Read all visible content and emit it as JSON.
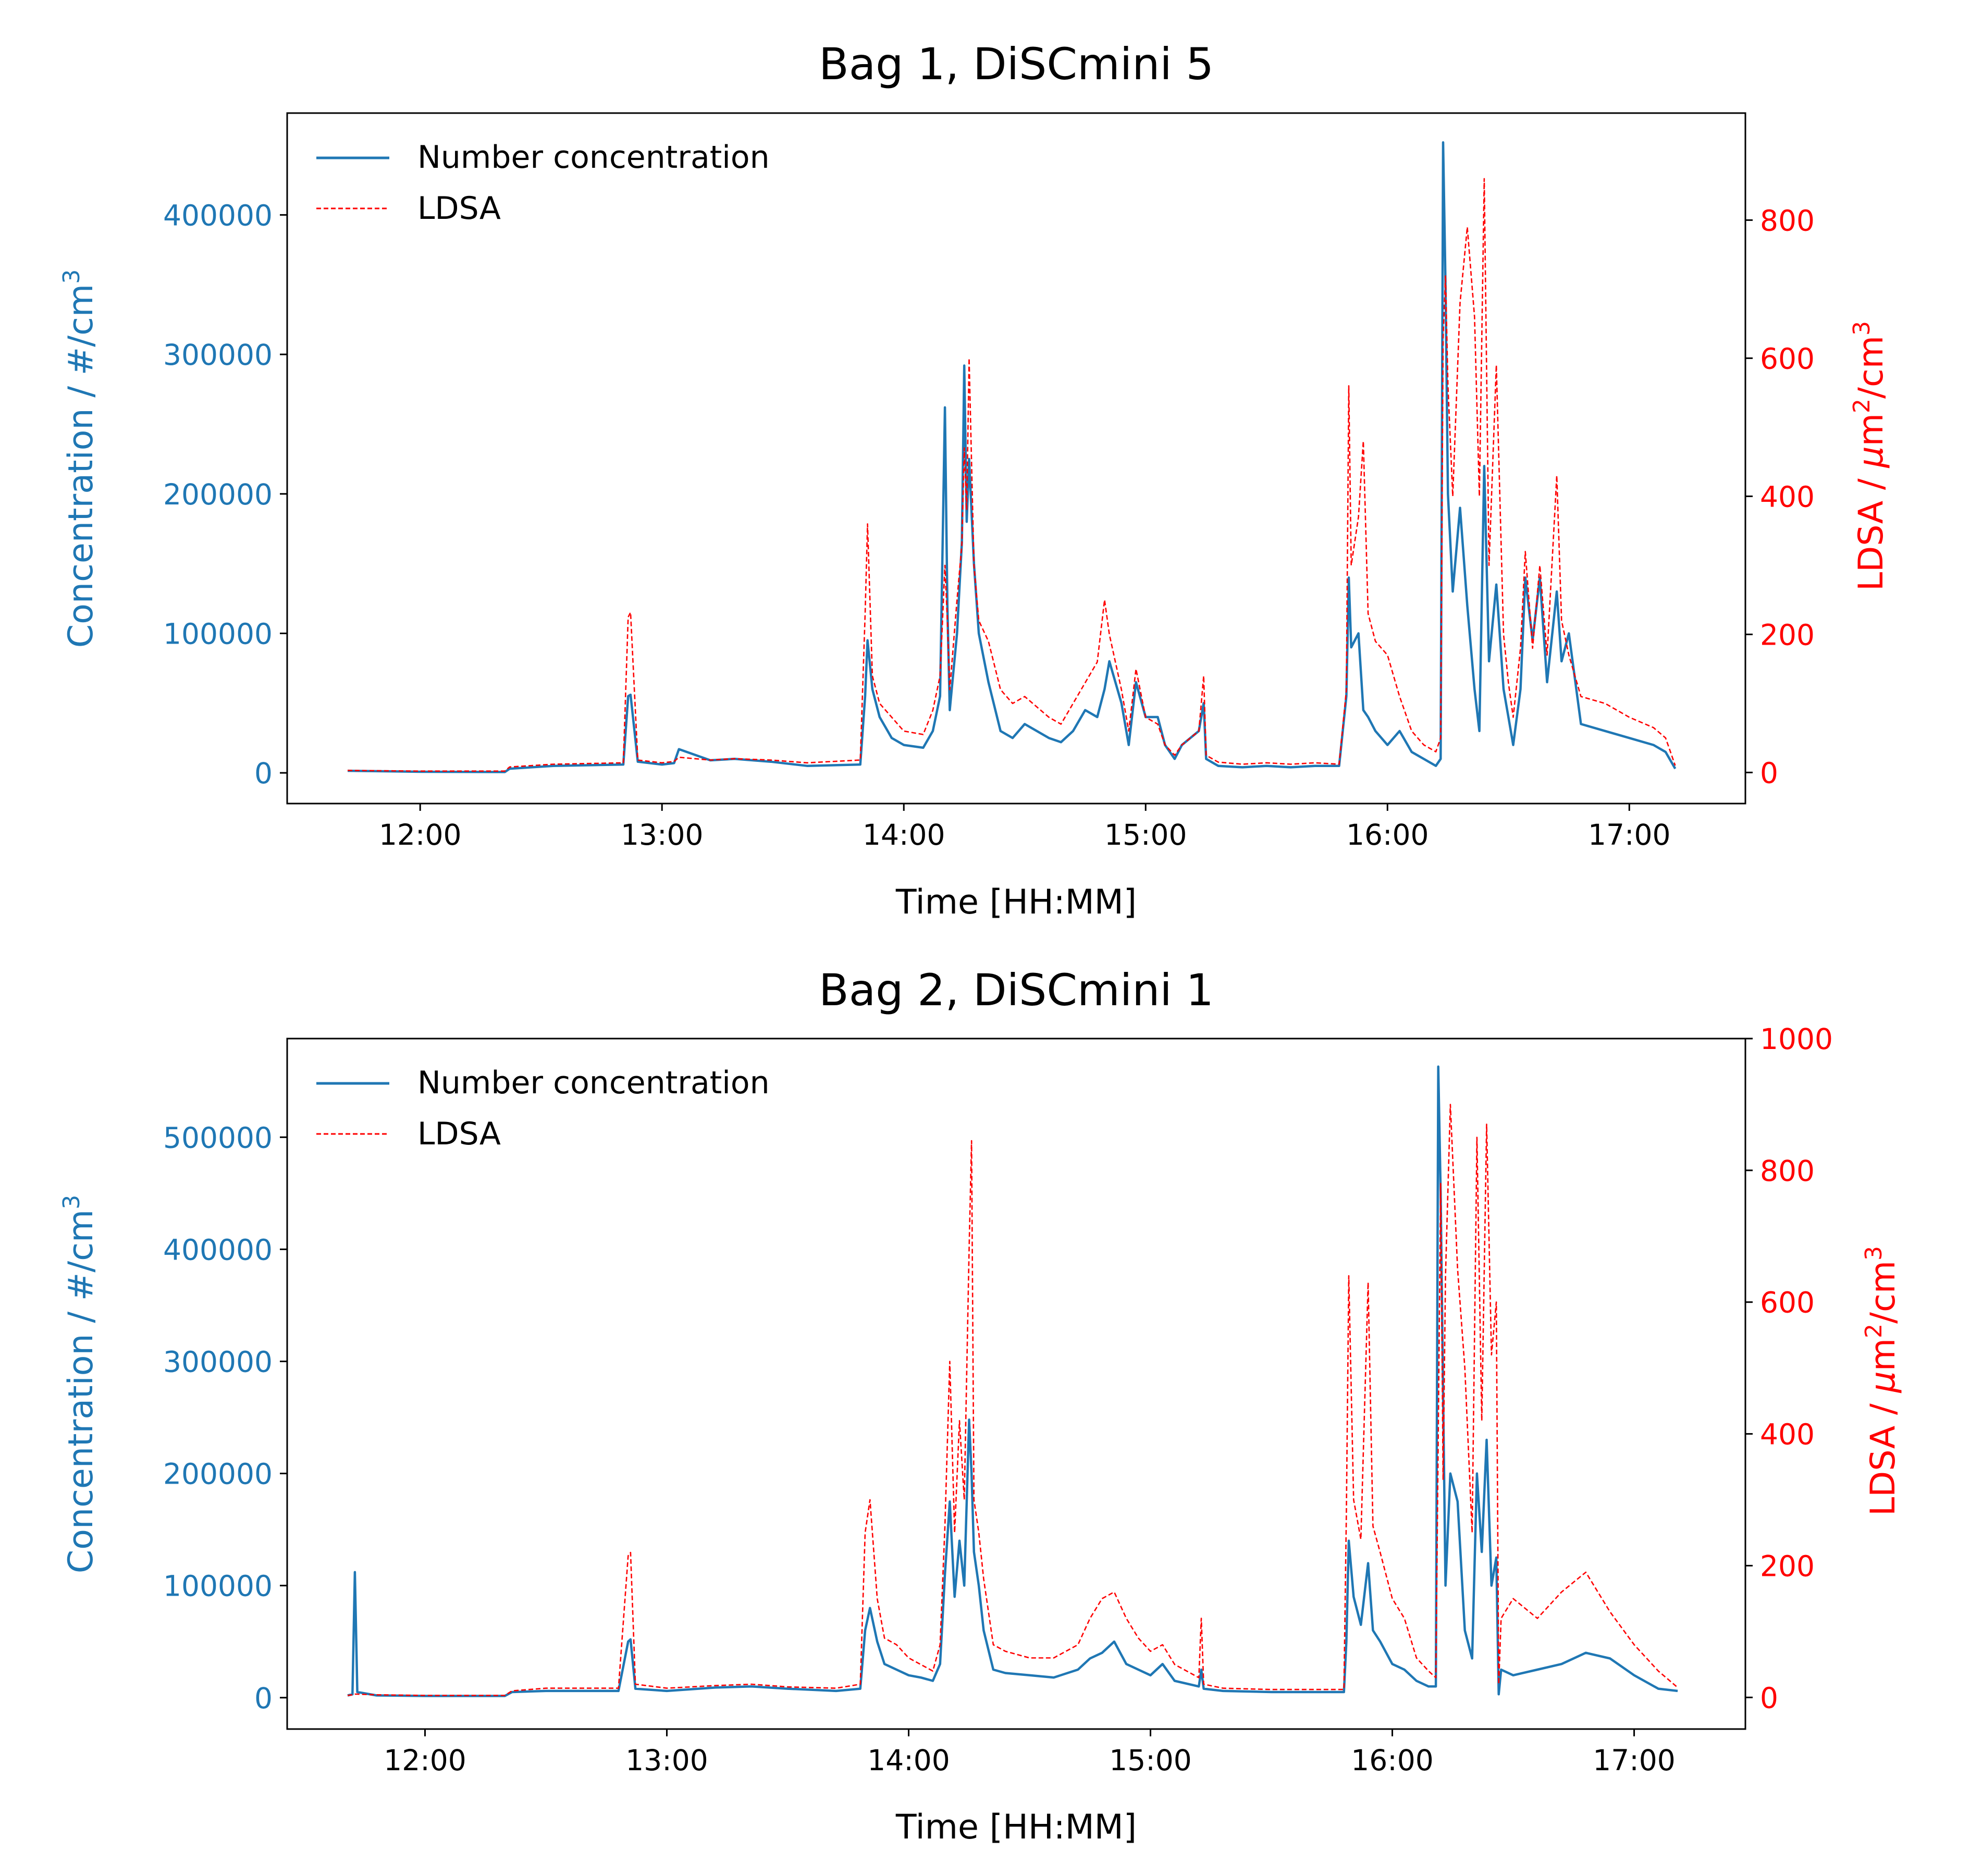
{
  "chart_data": [
    {
      "type": "line",
      "title": "Bag 1, DiSCmini 5",
      "xlabel": "Time [HH:MM]",
      "ylabel_left": "Concentration / #/cm³",
      "ylabel_right": "LDSA / μm²/cm³",
      "x_ticks": [
        "12:00",
        "13:00",
        "14:00",
        "15:00",
        "16:00",
        "17:00"
      ],
      "x_tick_values": [
        12.0,
        13.0,
        14.0,
        15.0,
        16.0,
        17.0
      ],
      "xlim": [
        11.45,
        17.48
      ],
      "y_left_ticks": [
        "0",
        "100000",
        "200000",
        "300000",
        "400000"
      ],
      "y_left_tick_values": [
        0,
        100000,
        200000,
        300000,
        400000
      ],
      "ylim_left": [
        -22000,
        473000
      ],
      "y_right_ticks": [
        "0",
        "200",
        "400",
        "600",
        "800"
      ],
      "y_right_tick_values": [
        0,
        200,
        400,
        600,
        800
      ],
      "ylim_right": [
        -45,
        955
      ],
      "legend_position": "top-left",
      "colors": {
        "number": "#1f77b4",
        "ldsa": "#ff0000"
      },
      "series": [
        {
          "name": "Number concentration",
          "axis": "left",
          "style": "solid",
          "x": [
            11.7,
            12.0,
            12.35,
            12.37,
            12.55,
            12.84,
            12.86,
            12.87,
            12.9,
            13.0,
            13.05,
            13.07,
            13.2,
            13.3,
            13.45,
            13.6,
            13.82,
            13.84,
            13.85,
            13.87,
            13.9,
            13.95,
            14.0,
            14.08,
            14.12,
            14.15,
            14.17,
            14.18,
            14.19,
            14.22,
            14.24,
            14.25,
            14.26,
            14.27,
            14.29,
            14.31,
            14.35,
            14.4,
            14.45,
            14.5,
            14.6,
            14.65,
            14.7,
            14.75,
            14.8,
            14.83,
            14.85,
            14.9,
            14.93,
            14.96,
            15.0,
            15.05,
            15.08,
            15.12,
            15.15,
            15.22,
            15.24,
            15.25,
            15.3,
            15.4,
            15.5,
            15.6,
            15.7,
            15.8,
            15.83,
            15.84,
            15.85,
            15.88,
            15.9,
            15.92,
            15.95,
            16.0,
            16.05,
            16.1,
            16.15,
            16.2,
            16.22,
            16.23,
            16.24,
            16.25,
            16.27,
            16.3,
            16.33,
            16.36,
            16.38,
            16.4,
            16.42,
            16.45,
            16.48,
            16.5,
            16.52,
            16.55,
            16.57,
            16.6,
            16.63,
            16.66,
            16.7,
            16.72,
            16.75,
            16.8,
            16.9,
            17.0,
            17.1,
            17.15,
            17.19
          ],
          "y": [
            1500,
            800,
            600,
            3000,
            5000,
            6000,
            55000,
            56000,
            8000,
            6000,
            7000,
            17000,
            9000,
            10000,
            8000,
            5000,
            6000,
            55000,
            95000,
            60000,
            40000,
            25000,
            20000,
            18000,
            30000,
            55000,
            262000,
            120000,
            45000,
            100000,
            165000,
            292000,
            180000,
            225000,
            150000,
            100000,
            65000,
            30000,
            25000,
            35000,
            25000,
            22000,
            30000,
            45000,
            40000,
            60000,
            80000,
            50000,
            20000,
            65000,
            40000,
            40000,
            20000,
            10000,
            20000,
            30000,
            50000,
            10000,
            5000,
            4000,
            5000,
            4000,
            5000,
            5000,
            55000,
            140000,
            90000,
            100000,
            45000,
            40000,
            30000,
            20000,
            30000,
            15000,
            10000,
            5000,
            10000,
            452000,
            350000,
            200000,
            130000,
            190000,
            120000,
            60000,
            30000,
            220000,
            80000,
            135000,
            60000,
            40000,
            20000,
            60000,
            140000,
            95000,
            140000,
            65000,
            130000,
            80000,
            100000,
            35000,
            30000,
            25000,
            20000,
            15000,
            3000
          ]
        },
        {
          "name": "LDSA",
          "axis": "right",
          "style": "dashed",
          "x": [
            11.7,
            12.0,
            12.35,
            12.37,
            12.55,
            12.84,
            12.86,
            12.87,
            12.9,
            13.0,
            13.05,
            13.07,
            13.2,
            13.3,
            13.45,
            13.6,
            13.82,
            13.84,
            13.85,
            13.87,
            13.9,
            13.95,
            14.0,
            14.08,
            14.12,
            14.15,
            14.17,
            14.18,
            14.19,
            14.22,
            14.24,
            14.25,
            14.26,
            14.27,
            14.29,
            14.31,
            14.35,
            14.4,
            14.45,
            14.5,
            14.6,
            14.65,
            14.7,
            14.75,
            14.8,
            14.83,
            14.85,
            14.9,
            14.93,
            14.96,
            15.0,
            15.05,
            15.08,
            15.12,
            15.15,
            15.22,
            15.24,
            15.25,
            15.3,
            15.4,
            15.5,
            15.6,
            15.7,
            15.8,
            15.83,
            15.84,
            15.85,
            15.88,
            15.9,
            15.92,
            15.95,
            16.0,
            16.05,
            16.1,
            16.15,
            16.2,
            16.22,
            16.23,
            16.24,
            16.25,
            16.27,
            16.3,
            16.33,
            16.36,
            16.38,
            16.4,
            16.42,
            16.45,
            16.48,
            16.5,
            16.52,
            16.55,
            16.57,
            16.6,
            16.63,
            16.66,
            16.7,
            16.72,
            16.75,
            16.8,
            16.9,
            17.0,
            17.1,
            17.15,
            17.19
          ],
          "y": [
            3,
            2,
            2,
            8,
            12,
            14,
            225,
            232,
            18,
            14,
            16,
            22,
            18,
            20,
            18,
            14,
            18,
            230,
            360,
            140,
            100,
            80,
            60,
            55,
            90,
            140,
            300,
            220,
            120,
            250,
            330,
            470,
            380,
            600,
            300,
            220,
            190,
            120,
            100,
            110,
            80,
            70,
            100,
            130,
            160,
            250,
            200,
            120,
            60,
            150,
            80,
            70,
            40,
            25,
            40,
            60,
            140,
            25,
            15,
            12,
            14,
            12,
            14,
            12,
            120,
            560,
            300,
            370,
            480,
            230,
            190,
            170,
            110,
            60,
            40,
            30,
            50,
            630,
            720,
            560,
            400,
            680,
            790,
            660,
            400,
            860,
            300,
            590,
            200,
            130,
            80,
            180,
            320,
            180,
            300,
            170,
            430,
            220,
            170,
            110,
            100,
            80,
            65,
            50,
            10
          ]
        }
      ]
    },
    {
      "type": "line",
      "title": "Bag 2, DiSCmini 1",
      "xlabel": "Time [HH:MM]",
      "ylabel_left": "Concentration / #/cm³",
      "ylabel_right": "LDSA / μm²/cm³",
      "x_ticks": [
        "12:00",
        "13:00",
        "14:00",
        "15:00",
        "16:00",
        "17:00"
      ],
      "x_tick_values": [
        12.0,
        13.0,
        14.0,
        15.0,
        16.0,
        17.0
      ],
      "xlim": [
        11.43,
        17.46
      ],
      "y_left_ticks": [
        "0",
        "100000",
        "200000",
        "300000",
        "400000",
        "500000"
      ],
      "y_left_tick_values": [
        0,
        100000,
        200000,
        300000,
        400000,
        500000
      ],
      "ylim_left": [
        -28000,
        588000
      ],
      "y_right_ticks": [
        "0",
        "200",
        "400",
        "600",
        "800",
        "1000"
      ],
      "y_right_tick_values": [
        0,
        200,
        400,
        600,
        800,
        1000
      ],
      "ylim_right": [
        -48,
        1000
      ],
      "legend_position": "top-left",
      "colors": {
        "number": "#1f77b4",
        "ldsa": "#ff0000"
      },
      "series": [
        {
          "name": "Number concentration",
          "axis": "left",
          "style": "solid",
          "x": [
            11.68,
            11.7,
            11.71,
            11.72,
            11.8,
            12.0,
            12.33,
            12.36,
            12.5,
            12.8,
            12.84,
            12.85,
            12.87,
            13.0,
            13.2,
            13.35,
            13.5,
            13.7,
            13.8,
            13.82,
            13.84,
            13.87,
            13.9,
            13.95,
            14.0,
            14.05,
            14.1,
            14.13,
            14.15,
            14.17,
            14.19,
            14.21,
            14.23,
            14.25,
            14.26,
            14.27,
            14.29,
            14.31,
            14.35,
            14.4,
            14.5,
            14.6,
            14.7,
            14.75,
            14.8,
            14.85,
            14.9,
            14.95,
            15.0,
            15.05,
            15.1,
            15.2,
            15.21,
            15.22,
            15.3,
            15.5,
            15.7,
            15.8,
            15.81,
            15.82,
            15.84,
            15.87,
            15.9,
            15.92,
            15.95,
            16.0,
            16.05,
            16.1,
            16.15,
            16.18,
            16.19,
            16.2,
            16.21,
            16.22,
            16.24,
            16.27,
            16.3,
            16.33,
            16.35,
            16.37,
            16.39,
            16.41,
            16.43,
            16.44,
            16.45,
            16.5,
            16.6,
            16.7,
            16.8,
            16.9,
            17.0,
            17.1,
            17.18
          ],
          "y": [
            2000,
            3000,
            112000,
            5000,
            2000,
            1500,
            1500,
            5000,
            6000,
            6000,
            50000,
            52000,
            8000,
            6000,
            9000,
            10000,
            8000,
            6000,
            8000,
            60000,
            80000,
            50000,
            30000,
            25000,
            20000,
            18000,
            15000,
            30000,
            110000,
            175000,
            90000,
            140000,
            100000,
            248000,
            200000,
            130000,
            100000,
            60000,
            25000,
            22000,
            20000,
            18000,
            25000,
            35000,
            40000,
            50000,
            30000,
            25000,
            20000,
            30000,
            15000,
            10000,
            25000,
            8000,
            6000,
            5000,
            5000,
            5000,
            50000,
            140000,
            90000,
            65000,
            120000,
            60000,
            50000,
            30000,
            25000,
            15000,
            10000,
            10000,
            563000,
            450000,
            270000,
            100000,
            200000,
            175000,
            60000,
            35000,
            200000,
            130000,
            230000,
            100000,
            125000,
            3000,
            25000,
            20000,
            25000,
            30000,
            40000,
            35000,
            20000,
            8000,
            6000
          ]
        },
        {
          "name": "LDSA",
          "axis": "right",
          "style": "dashed",
          "x": [
            11.68,
            11.7,
            11.71,
            11.72,
            11.8,
            12.0,
            12.33,
            12.36,
            12.5,
            12.8,
            12.84,
            12.85,
            12.87,
            13.0,
            13.2,
            13.35,
            13.5,
            13.7,
            13.8,
            13.82,
            13.84,
            13.87,
            13.9,
            13.95,
            14.0,
            14.05,
            14.1,
            14.13,
            14.15,
            14.17,
            14.19,
            14.21,
            14.23,
            14.25,
            14.26,
            14.27,
            14.29,
            14.31,
            14.35,
            14.4,
            14.5,
            14.6,
            14.7,
            14.75,
            14.8,
            14.85,
            14.9,
            14.95,
            15.0,
            15.05,
            15.1,
            15.2,
            15.21,
            15.22,
            15.3,
            15.5,
            15.7,
            15.8,
            15.81,
            15.82,
            15.84,
            15.87,
            15.9,
            15.92,
            15.95,
            16.0,
            16.05,
            16.1,
            16.15,
            16.18,
            16.19,
            16.2,
            16.21,
            16.22,
            16.24,
            16.27,
            16.3,
            16.33,
            16.35,
            16.37,
            16.39,
            16.41,
            16.43,
            16.44,
            16.45,
            16.5,
            16.6,
            16.7,
            16.8,
            16.9,
            17.0,
            17.1,
            17.18
          ],
          "y": [
            3,
            4,
            5,
            5,
            4,
            3,
            3,
            10,
            14,
            14,
            215,
            220,
            20,
            14,
            18,
            20,
            16,
            14,
            20,
            250,
            300,
            150,
            90,
            80,
            60,
            50,
            40,
            80,
            260,
            510,
            250,
            420,
            300,
            680,
            845,
            300,
            250,
            180,
            80,
            70,
            60,
            60,
            80,
            120,
            150,
            160,
            120,
            90,
            70,
            80,
            50,
            30,
            120,
            20,
            14,
            12,
            12,
            12,
            280,
            640,
            300,
            240,
            630,
            260,
            220,
            150,
            120,
            60,
            40,
            30,
            400,
            780,
            330,
            640,
            900,
            650,
            500,
            250,
            850,
            420,
            870,
            520,
            600,
            20,
            120,
            150,
            120,
            160,
            190,
            130,
            80,
            40,
            15
          ]
        }
      ]
    }
  ]
}
